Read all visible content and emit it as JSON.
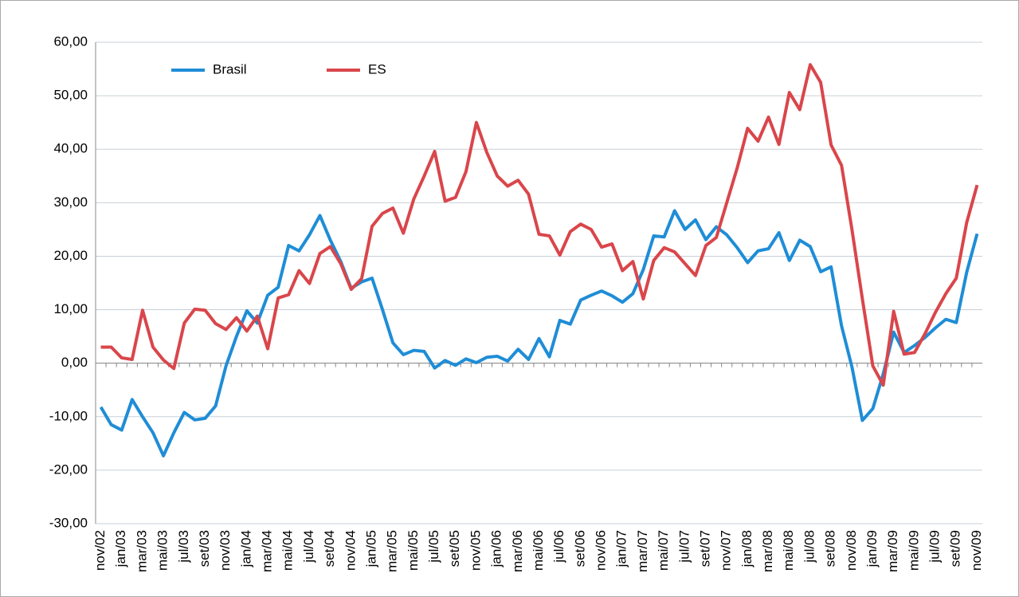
{
  "chart_data": {
    "type": "line",
    "categories": [
      "nov/02",
      null,
      "jan/03",
      null,
      "mar/03",
      null,
      "mai/03",
      null,
      "jul/03",
      null,
      "set/03",
      null,
      "nov/03",
      null,
      "jan/04",
      null,
      "mar/04",
      null,
      "mai/04",
      null,
      "jul/04",
      null,
      "set/04",
      null,
      "nov/04",
      null,
      "jan/05",
      null,
      "mar/05",
      null,
      "mai/05",
      null,
      "jul/05",
      null,
      "set/05",
      null,
      "nov/05",
      null,
      "jan/06",
      null,
      "mar/06",
      null,
      "mai/06",
      null,
      "jul/06",
      null,
      "set/06",
      null,
      "nov/06",
      null,
      "jan/07",
      null,
      "mar/07",
      null,
      "mai/07",
      null,
      "jul/07",
      null,
      "set/07",
      null,
      "nov/07",
      null,
      "jan/08",
      null,
      "mar/08",
      null,
      "mai/08",
      null,
      "jul/08",
      null,
      "set/08",
      null,
      "nov/08",
      null,
      "jan/09",
      null,
      "mar/09",
      null,
      "mai/09",
      null,
      "jul/09",
      null,
      "set/09",
      null,
      "nov/09"
    ],
    "series": [
      {
        "name": "Brasil",
        "color": "#1f8dd6",
        "values": [
          -8.2,
          -11.5,
          -12.5,
          -6.8,
          -10,
          -13,
          -17.3,
          -13,
          -9.2,
          -10.6,
          -10.3,
          -8,
          -0.5,
          5,
          9.8,
          7.5,
          12.7,
          14.2,
          22,
          21,
          24,
          27.6,
          23,
          19,
          14,
          15.2,
          15.9,
          10,
          3.8,
          1.6,
          2.4,
          2.2,
          -0.9,
          0.5,
          -0.4,
          0.8,
          0.1,
          1.1,
          1.3,
          0.4,
          2.6,
          0.7,
          4.6,
          1.2,
          8,
          7.3,
          11.8,
          12.7,
          13.5,
          12.6,
          11.4,
          13,
          17.5,
          23.8,
          23.6,
          28.5,
          25,
          26.8,
          23.1,
          25.5,
          24,
          21.6,
          18.8,
          21,
          21.4,
          24.4,
          19.2,
          23,
          21.8,
          17.1,
          18,
          7,
          -0.7,
          -10.7,
          -8.5,
          -2,
          5.8,
          2,
          3.3,
          4.8,
          6.6,
          8.2,
          7.6,
          17,
          24.2
        ]
      },
      {
        "name": "ES",
        "color": "#d9464b",
        "values": [
          3,
          3,
          1,
          0.7,
          9.9,
          3,
          0.6,
          -1,
          7.5,
          10.1,
          9.9,
          7.4,
          6.3,
          8.5,
          6,
          8.8,
          2.7,
          12.2,
          12.8,
          17.3,
          14.9,
          20.5,
          21.8,
          18.6,
          13.8,
          15.8,
          25.6,
          28,
          29,
          24.3,
          30.7,
          35,
          39.6,
          30.3,
          31,
          35.8,
          45,
          39.4,
          35,
          33.1,
          34.2,
          31.6,
          24.1,
          23.8,
          20.2,
          24.6,
          26,
          25,
          21.7,
          22.3,
          17.3,
          19,
          12,
          19.2,
          21.6,
          20.8,
          18.6,
          16.4,
          22,
          23.5,
          30,
          36.5,
          43.9,
          41.5,
          46,
          40.9,
          50.6,
          47.4,
          55.8,
          52.5,
          40.8,
          37,
          25,
          12,
          -0.5,
          -4.1,
          9.7,
          1.7,
          2,
          5.5,
          9.5,
          13,
          15.9,
          26.3,
          33.3
        ]
      }
    ],
    "ylim": [
      -30,
      60
    ],
    "yticks": [
      {
        "value": -30,
        "label": "-30,00"
      },
      {
        "value": -20,
        "label": "-20,00"
      },
      {
        "value": -10,
        "label": "-10,00"
      },
      {
        "value": 0,
        "label": "0,00"
      },
      {
        "value": 10,
        "label": "10,00"
      },
      {
        "value": 20,
        "label": "20,00"
      },
      {
        "value": 30,
        "label": "30,00"
      },
      {
        "value": 40,
        "label": "40,00"
      },
      {
        "value": 50,
        "label": "50,00"
      },
      {
        "value": 60,
        "label": "60,00"
      }
    ],
    "grid": true,
    "legend": "top-left"
  }
}
